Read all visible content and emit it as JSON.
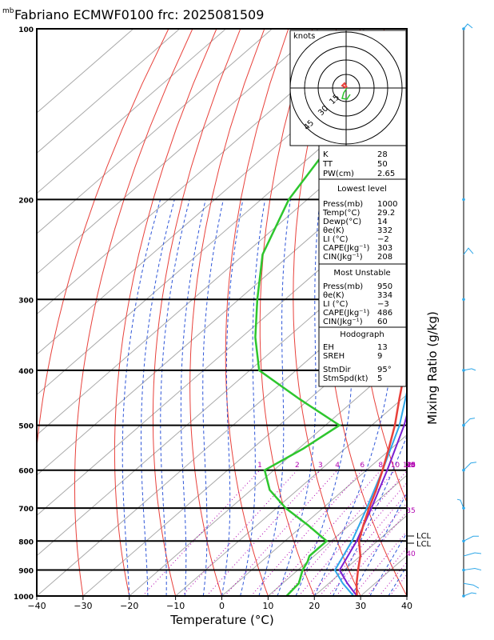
{
  "header": {
    "mb_label": "mb",
    "title": "Fabriano ECMWF0100 frc: 2025081509"
  },
  "chart_data": {
    "type": "skew-t",
    "xlabel": "Temperature (°C)",
    "ylabel_right": "Mixing Ratio (g/kg)",
    "xlim": [
      -40,
      40
    ],
    "ylim": [
      1000,
      100
    ],
    "x_ticks": [
      "−40",
      "−30",
      "−20",
      "−10",
      "0",
      "10",
      "20",
      "30",
      "40"
    ],
    "pressure_ticks": [
      "100",
      "200",
      "300",
      "400",
      "500",
      "600",
      "700",
      "800",
      "900",
      "1000"
    ],
    "mixing_ratio_labels": [
      "1",
      "2",
      "3",
      "4",
      "6",
      "8",
      "10",
      "12",
      "14",
      "16",
      "18",
      "20",
      "25",
      "30",
      "35",
      "40"
    ],
    "lcl_labels": [
      "LCL",
      "LCL"
    ],
    "temperature_profile": [
      {
        "p": 1000,
        "t": 29.2
      },
      {
        "p": 950,
        "t": 26
      },
      {
        "p": 900,
        "t": 23
      },
      {
        "p": 850,
        "t": 20
      },
      {
        "p": 800,
        "t": 16
      },
      {
        "p": 750,
        "t": 13
      },
      {
        "p": 700,
        "t": 10
      },
      {
        "p": 650,
        "t": 7
      },
      {
        "p": 600,
        "t": 3.5
      },
      {
        "p": 550,
        "t": -0.5
      },
      {
        "p": 500,
        "t": -5
      },
      {
        "p": 450,
        "t": -10.5
      },
      {
        "p": 400,
        "t": -16.5
      },
      {
        "p": 350,
        "t": -24
      },
      {
        "p": 300,
        "t": -33
      },
      {
        "p": 250,
        "t": -43.5
      },
      {
        "p": 200,
        "t": -54
      },
      {
        "p": 150,
        "t": -63
      },
      {
        "p": 100,
        "t": -72
      }
    ],
    "dewpoint_profile": [
      {
        "p": 1000,
        "t": 14
      },
      {
        "p": 950,
        "t": 13.5
      },
      {
        "p": 900,
        "t": 11
      },
      {
        "p": 870,
        "t": 10
      },
      {
        "p": 850,
        "t": 9
      },
      {
        "p": 800,
        "t": 9
      },
      {
        "p": 750,
        "t": 1
      },
      {
        "p": 700,
        "t": -8
      },
      {
        "p": 650,
        "t": -16
      },
      {
        "p": 600,
        "t": -22
      },
      {
        "p": 550,
        "t": -19
      },
      {
        "p": 500,
        "t": -17
      },
      {
        "p": 450,
        "t": -32
      },
      {
        "p": 400,
        "t": -48
      },
      {
        "p": 350,
        "t": -57
      },
      {
        "p": 300,
        "t": -66
      },
      {
        "p": 250,
        "t": -76
      },
      {
        "p": 200,
        "t": -84
      },
      {
        "p": 150,
        "t": -90
      },
      {
        "p": 100,
        "t": -96
      }
    ],
    "parcel_path": [
      {
        "p": 1000,
        "t": 29.2
      },
      {
        "p": 950,
        "t": 24
      },
      {
        "p": 900,
        "t": 19
      },
      {
        "p": 800,
        "t": 15.5
      },
      {
        "p": 700,
        "t": 10.5
      },
      {
        "p": 600,
        "t": 4.5
      },
      {
        "p": 500,
        "t": -3
      },
      {
        "p": 400,
        "t": -13.5
      },
      {
        "p": 300,
        "t": -30
      },
      {
        "p": 200,
        "t": -56
      },
      {
        "p": 150,
        "t": -70
      },
      {
        "p": 100,
        "t": -86
      }
    ],
    "parcel_path2": [
      {
        "p": 1000,
        "t": 28.5
      },
      {
        "p": 950,
        "t": 23
      },
      {
        "p": 900,
        "t": 18
      },
      {
        "p": 800,
        "t": 14.5
      },
      {
        "p": 700,
        "t": 9.5
      },
      {
        "p": 600,
        "t": 3.5
      },
      {
        "p": 500,
        "t": -4
      },
      {
        "p": 400,
        "t": -15
      },
      {
        "p": 300,
        "t": -32
      },
      {
        "p": 200,
        "t": -58
      },
      {
        "p": 150,
        "t": -72
      },
      {
        "p": 100,
        "t": -88
      }
    ]
  },
  "hodograph": {
    "units": "knots",
    "rings": [
      "15",
      "30",
      "45"
    ]
  },
  "indices": {
    "k_label": "K",
    "k": "28",
    "tt_label": "TT",
    "tt": "50",
    "pw_label": "PW(cm)",
    "pw": "2.65",
    "lowest_title": "Lowest level",
    "lowest": [
      [
        "Press(mb)",
        "1000"
      ],
      [
        "Temp(°C)",
        "29.2"
      ],
      [
        "Dewp(°C)",
        "14"
      ],
      [
        "θe(K)",
        "332"
      ],
      [
        "LI (°C)",
        "−2"
      ],
      [
        "CAPE(Jkg⁻¹)",
        "303"
      ],
      [
        "CIN(Jkg⁻¹)",
        "208"
      ]
    ],
    "unstable_title": "Most Unstable",
    "unstable": [
      [
        "Press(mb)",
        "950"
      ],
      [
        "θe(K)",
        "334"
      ],
      [
        "LI (°C)",
        "−3"
      ],
      [
        "CAPE(Jkg⁻¹)",
        "486"
      ],
      [
        "CIN(Jkg⁻¹)",
        "60"
      ]
    ],
    "hodo_title": "Hodograph",
    "hodo": [
      [
        "EH",
        "13"
      ],
      [
        "SREH",
        "9"
      ],
      [
        "StmDir",
        "95°"
      ],
      [
        "StmSpd(kt)",
        "5"
      ]
    ]
  },
  "colors": {
    "temperature": "#e8413b",
    "dewpoint": "#2ec62e",
    "parcel": "#7a1fd1",
    "parcel2": "#2ea7e8",
    "dry_adiabat": "#e8413b",
    "moist_adiabat": "#2f56d8",
    "isotherm": "#aaaaaa",
    "mixing_ratio": "#b000b0",
    "wind_barb": "#2ea7e8"
  }
}
